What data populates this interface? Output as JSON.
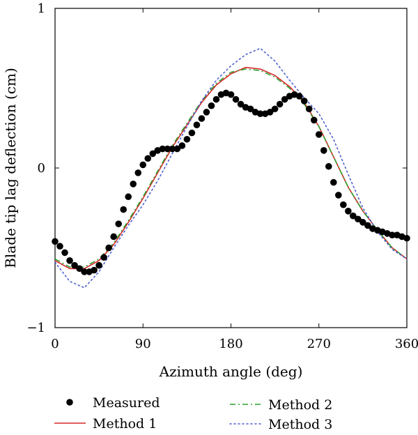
{
  "chart_data": {
    "type": "line",
    "title": "",
    "xlabel": "Azimuth angle (deg)",
    "ylabel": "Blade tip lag deflection (cm)",
    "xlim": [
      0,
      360
    ],
    "ylim": [
      -1,
      1
    ],
    "xticks": [
      0,
      90,
      180,
      270,
      360
    ],
    "yticks": [
      -1,
      0,
      1
    ],
    "xtick_labels": [
      "0",
      "90",
      "180",
      "270",
      "360"
    ],
    "ytick_labels": [
      "−1",
      "0",
      "1"
    ],
    "grid": false,
    "legend_position": "bottom",
    "series": [
      {
        "name": "Measured",
        "style": "markers",
        "color": "#000000",
        "x": [
          0,
          5,
          10,
          15,
          20,
          25,
          30,
          35,
          40,
          45,
          50,
          55,
          60,
          65,
          70,
          75,
          80,
          85,
          90,
          95,
          100,
          105,
          110,
          115,
          120,
          125,
          130,
          135,
          140,
          145,
          150,
          155,
          160,
          165,
          170,
          175,
          180,
          185,
          190,
          195,
          200,
          205,
          210,
          215,
          220,
          225,
          230,
          235,
          240,
          245,
          250,
          255,
          260,
          265,
          270,
          275,
          280,
          285,
          290,
          295,
          300,
          305,
          310,
          315,
          320,
          325,
          330,
          335,
          340,
          345,
          350,
          355,
          360
        ],
        "y": [
          -0.46,
          -0.49,
          -0.53,
          -0.58,
          -0.61,
          -0.63,
          -0.65,
          -0.65,
          -0.64,
          -0.61,
          -0.56,
          -0.5,
          -0.43,
          -0.35,
          -0.26,
          -0.18,
          -0.1,
          -0.03,
          0.02,
          0.06,
          0.09,
          0.11,
          0.12,
          0.12,
          0.12,
          0.12,
          0.14,
          0.18,
          0.22,
          0.27,
          0.31,
          0.35,
          0.39,
          0.43,
          0.46,
          0.47,
          0.46,
          0.43,
          0.4,
          0.38,
          0.37,
          0.35,
          0.34,
          0.34,
          0.35,
          0.37,
          0.4,
          0.43,
          0.45,
          0.46,
          0.45,
          0.42,
          0.37,
          0.3,
          0.21,
          0.11,
          0.01,
          -0.09,
          -0.17,
          -0.23,
          -0.27,
          -0.3,
          -0.32,
          -0.34,
          -0.36,
          -0.38,
          -0.39,
          -0.4,
          -0.41,
          -0.42,
          -0.42,
          -0.43,
          -0.44
        ]
      },
      {
        "name": "Method 1",
        "style": "solid",
        "color": "#d62728",
        "x": [
          0,
          15,
          30,
          45,
          60,
          75,
          90,
          105,
          120,
          135,
          150,
          165,
          180,
          195,
          210,
          225,
          240,
          255,
          270,
          285,
          300,
          315,
          330,
          345,
          360
        ],
        "y": [
          -0.58,
          -0.63,
          -0.63,
          -0.58,
          -0.48,
          -0.34,
          -0.19,
          -0.03,
          0.13,
          0.27,
          0.41,
          0.52,
          0.59,
          0.63,
          0.62,
          0.58,
          0.51,
          0.41,
          0.26,
          0.07,
          -0.12,
          -0.27,
          -0.39,
          -0.5,
          -0.57
        ]
      },
      {
        "name": "Method 2",
        "style": "dashdot",
        "color": "#2ca02c",
        "x": [
          0,
          15,
          30,
          45,
          60,
          75,
          90,
          105,
          120,
          135,
          150,
          165,
          180,
          195,
          210,
          225,
          240,
          255,
          270,
          285,
          300,
          315,
          330,
          345,
          360
        ],
        "y": [
          -0.57,
          -0.62,
          -0.62,
          -0.57,
          -0.47,
          -0.33,
          -0.18,
          -0.02,
          0.14,
          0.28,
          0.42,
          0.53,
          0.6,
          0.62,
          0.61,
          0.57,
          0.5,
          0.4,
          0.26,
          0.07,
          -0.12,
          -0.27,
          -0.39,
          -0.5,
          -0.57
        ]
      },
      {
        "name": "Method 3",
        "style": "dotted",
        "color": "#4f5fd1",
        "x": [
          0,
          15,
          30,
          45,
          60,
          75,
          90,
          105,
          120,
          135,
          150,
          165,
          180,
          195,
          210,
          225,
          240,
          255,
          270,
          285,
          300,
          315,
          330,
          345,
          360
        ],
        "y": [
          -0.59,
          -0.71,
          -0.75,
          -0.65,
          -0.5,
          -0.36,
          -0.23,
          -0.08,
          0.09,
          0.26,
          0.42,
          0.55,
          0.64,
          0.71,
          0.75,
          0.67,
          0.55,
          0.44,
          0.34,
          0.18,
          -0.04,
          -0.25,
          -0.4,
          -0.51,
          -0.57
        ]
      }
    ]
  }
}
